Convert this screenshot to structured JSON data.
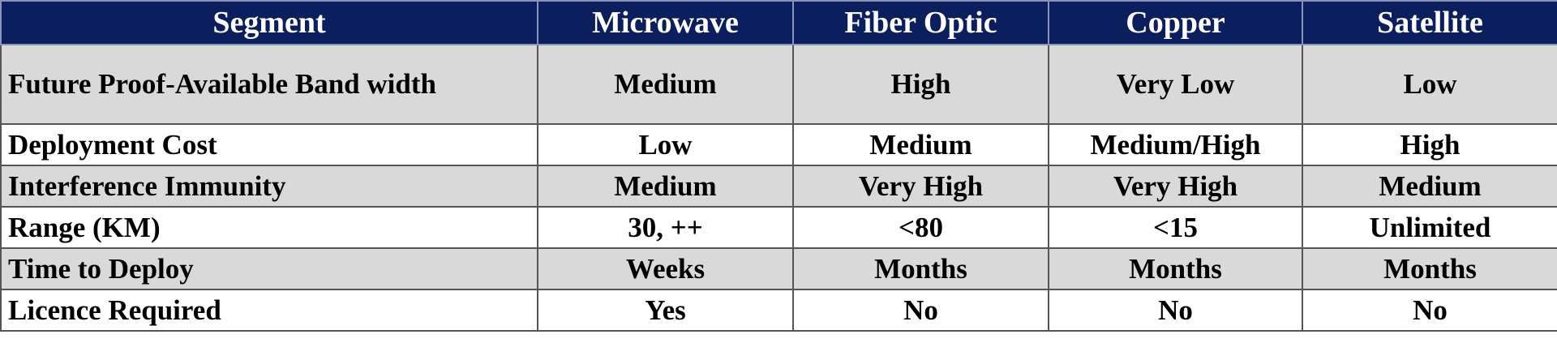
{
  "table": {
    "header": [
      "Segment",
      "Microwave",
      "Fiber Optic",
      "Copper",
      "Satellite"
    ],
    "rows": [
      [
        "Future Proof-Available Band width",
        "Medium",
        "High",
        "Very Low",
        "Low"
      ],
      [
        "Deployment Cost",
        "Low",
        "Medium",
        "Medium/High",
        "High"
      ],
      [
        "Interference Immunity",
        "Medium",
        "Very High",
        "Very High",
        "Medium"
      ],
      [
        "Range (KM)",
        "30, ++",
        "<80",
        "<15",
        "Unlimited"
      ],
      [
        "Time to Deploy",
        "Weeks",
        "Months",
        "Months",
        "Months"
      ],
      [
        "Licence Required",
        "Yes",
        "No",
        "No",
        "No"
      ]
    ]
  }
}
